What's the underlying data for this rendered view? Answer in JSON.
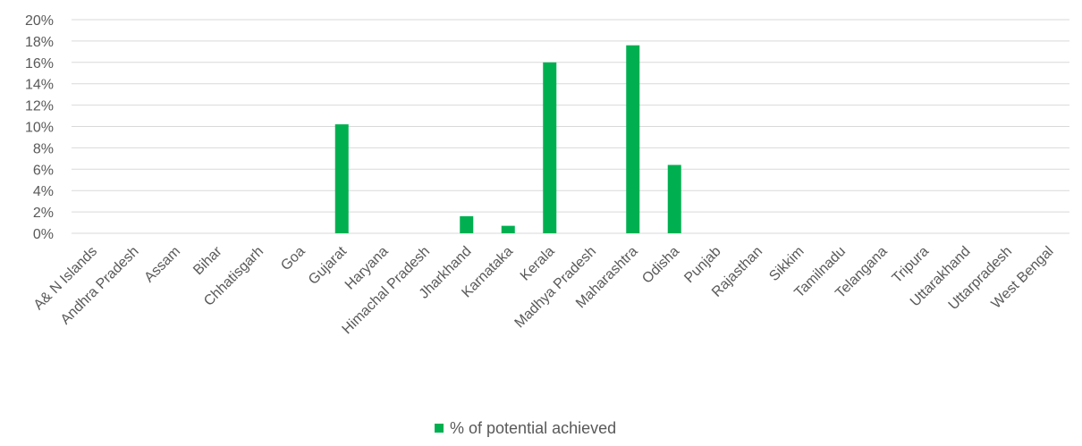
{
  "chart_data": {
    "type": "bar",
    "title": "",
    "xlabel": "",
    "ylabel": "",
    "ylim": [
      0,
      20
    ],
    "y_ticks": [
      0,
      2,
      4,
      6,
      8,
      10,
      12,
      14,
      16,
      18,
      20
    ],
    "y_tick_labels": [
      "0%",
      "2%",
      "4%",
      "6%",
      "8%",
      "10%",
      "12%",
      "14%",
      "16%",
      "18%",
      "20%"
    ],
    "grid": true,
    "legend_position": "bottom",
    "bar_color": "#00b050",
    "categories": [
      "A& N Islands",
      "Andhra Pradesh",
      "Assam",
      "Bihar",
      "Chhatisgarh",
      "Goa",
      "Gujarat",
      "Haryana",
      "Himachal Pradesh",
      "Jharkhand",
      "Karnataka",
      "Kerala",
      "Madhya Pradesh",
      "Maharashtra",
      "Odisha",
      "Punjab",
      "Rajasthan",
      "Sikkim",
      "Tamilnadu",
      "Telangana",
      "Tripura",
      "Uttarakhand",
      "Uttarpradesh",
      "West Bengal"
    ],
    "series": [
      {
        "name": "% of potential achieved",
        "values": [
          0,
          0,
          0,
          0,
          0,
          0,
          10.2,
          0,
          0,
          1.6,
          0.7,
          16.0,
          0,
          17.6,
          6.4,
          0,
          0,
          0,
          0,
          0,
          0,
          0,
          0,
          0
        ]
      }
    ]
  }
}
